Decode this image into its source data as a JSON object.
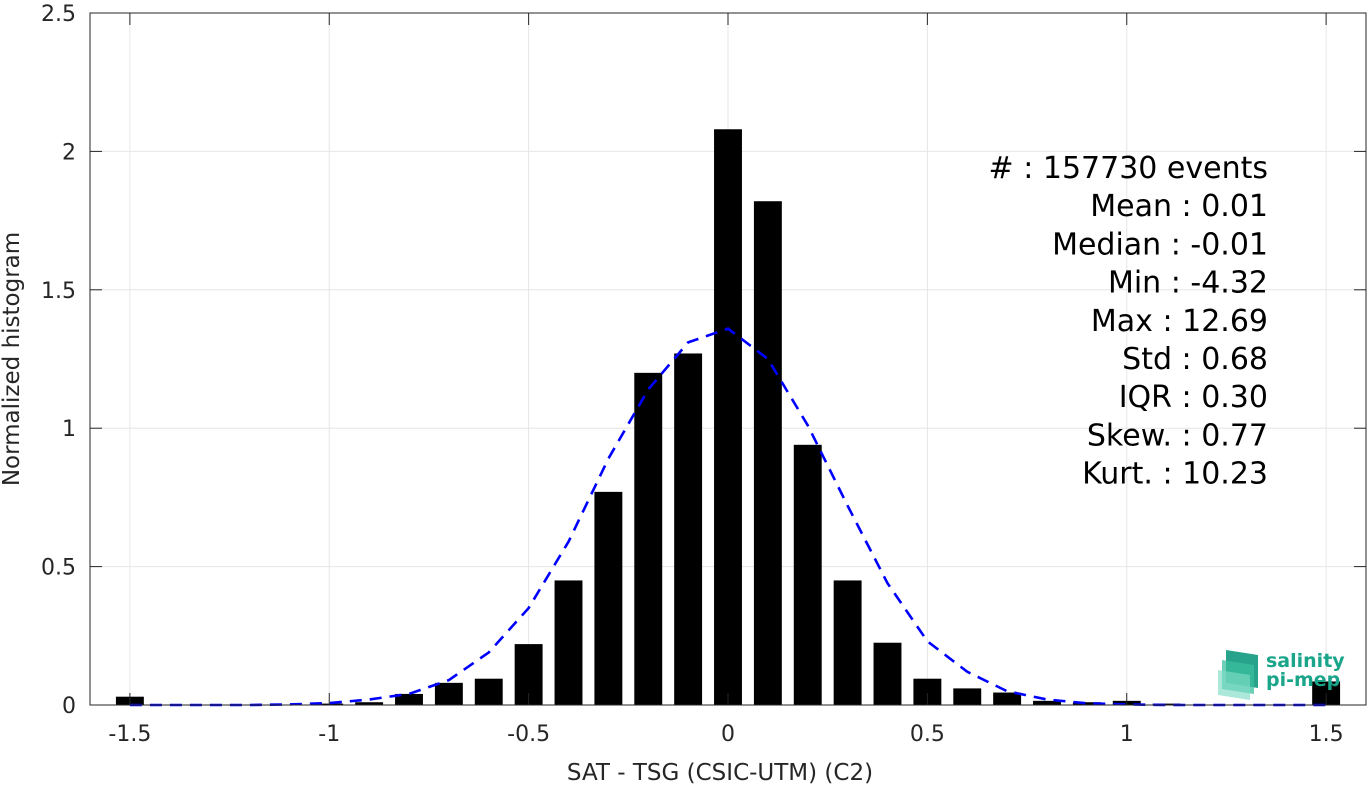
{
  "chart_data": {
    "type": "bar",
    "xlabel": "SAT - TSG (CSIC-UTM) (C2)",
    "ylabel": "Normalized histogram",
    "xlim": [
      -1.6,
      1.6
    ],
    "ylim": [
      0,
      2.5
    ],
    "xticks": [
      -1.5,
      -1,
      -0.5,
      0,
      0.5,
      1,
      1.5
    ],
    "xtick_labels": [
      "-1.5",
      "-1",
      "-0.5",
      "0",
      "0.5",
      "1",
      "1.5"
    ],
    "yticks": [
      0,
      0.5,
      1,
      1.5,
      2,
      2.5
    ],
    "ytick_labels": [
      "0",
      "0.5",
      "1",
      "1.5",
      "2",
      "2.5"
    ],
    "grid": true,
    "bar_color": "#000000",
    "bar_width": 0.07,
    "bins": [
      {
        "x": -1.5,
        "value": 0.03
      },
      {
        "x": -1.4,
        "value": 0.0
      },
      {
        "x": -1.3,
        "value": 0.0
      },
      {
        "x": -1.2,
        "value": 0.0
      },
      {
        "x": -1.1,
        "value": 0.0
      },
      {
        "x": -1.0,
        "value": 0.005
      },
      {
        "x": -0.9,
        "value": 0.01
      },
      {
        "x": -0.8,
        "value": 0.04
      },
      {
        "x": -0.7,
        "value": 0.08
      },
      {
        "x": -0.6,
        "value": 0.095
      },
      {
        "x": -0.5,
        "value": 0.22
      },
      {
        "x": -0.4,
        "value": 0.45
      },
      {
        "x": -0.3,
        "value": 0.77
      },
      {
        "x": -0.2,
        "value": 1.2
      },
      {
        "x": -0.1,
        "value": 1.27
      },
      {
        "x": 0.0,
        "value": 2.08
      },
      {
        "x": 0.1,
        "value": 1.82
      },
      {
        "x": 0.2,
        "value": 0.94
      },
      {
        "x": 0.3,
        "value": 0.45
      },
      {
        "x": 0.4,
        "value": 0.225
      },
      {
        "x": 0.5,
        "value": 0.095
      },
      {
        "x": 0.6,
        "value": 0.06
      },
      {
        "x": 0.7,
        "value": 0.045
      },
      {
        "x": 0.8,
        "value": 0.015
      },
      {
        "x": 0.9,
        "value": 0.01
      },
      {
        "x": 1.0,
        "value": 0.015
      },
      {
        "x": 1.1,
        "value": 0.005
      },
      {
        "x": 1.2,
        "value": 0.0
      },
      {
        "x": 1.3,
        "value": 0.0
      },
      {
        "x": 1.4,
        "value": 0.0
      },
      {
        "x": 1.5,
        "value": 0.085
      }
    ],
    "fit_curve": {
      "style": "dashed",
      "color": "#0000ff",
      "x": [
        -1.5,
        -1.4,
        -1.3,
        -1.2,
        -1.1,
        -1.0,
        -0.9,
        -0.8,
        -0.7,
        -0.6,
        -0.5,
        -0.4,
        -0.3,
        -0.2,
        -0.1,
        0.0,
        0.1,
        0.2,
        0.3,
        0.4,
        0.5,
        0.6,
        0.7,
        0.8,
        0.9,
        1.0,
        1.1,
        1.2,
        1.3,
        1.4,
        1.5
      ],
      "y": [
        0.0,
        0.0,
        0.0,
        0.0,
        0.002,
        0.007,
        0.02,
        0.04,
        0.09,
        0.19,
        0.35,
        0.59,
        0.89,
        1.14,
        1.31,
        1.36,
        1.25,
        1.01,
        0.72,
        0.44,
        0.23,
        0.12,
        0.05,
        0.02,
        0.006,
        0.002,
        0.0,
        0.0,
        0.0,
        0.0,
        0.0
      ]
    },
    "stats": [
      {
        "label": "#  : 157730 events"
      },
      {
        "label": "Mean : 0.01"
      },
      {
        "label": "Median : -0.01"
      },
      {
        "label": "Min : -4.32"
      },
      {
        "label": "Max : 12.69"
      },
      {
        "label": "Std : 0.68"
      },
      {
        "label": "IQR : 0.30"
      },
      {
        "label": "Skew. : 0.77"
      },
      {
        "label": "Kurt. : 10.23"
      }
    ]
  },
  "logo": {
    "line1": "salinity",
    "line2": "pi-mep",
    "color": "#1aa58a"
  }
}
